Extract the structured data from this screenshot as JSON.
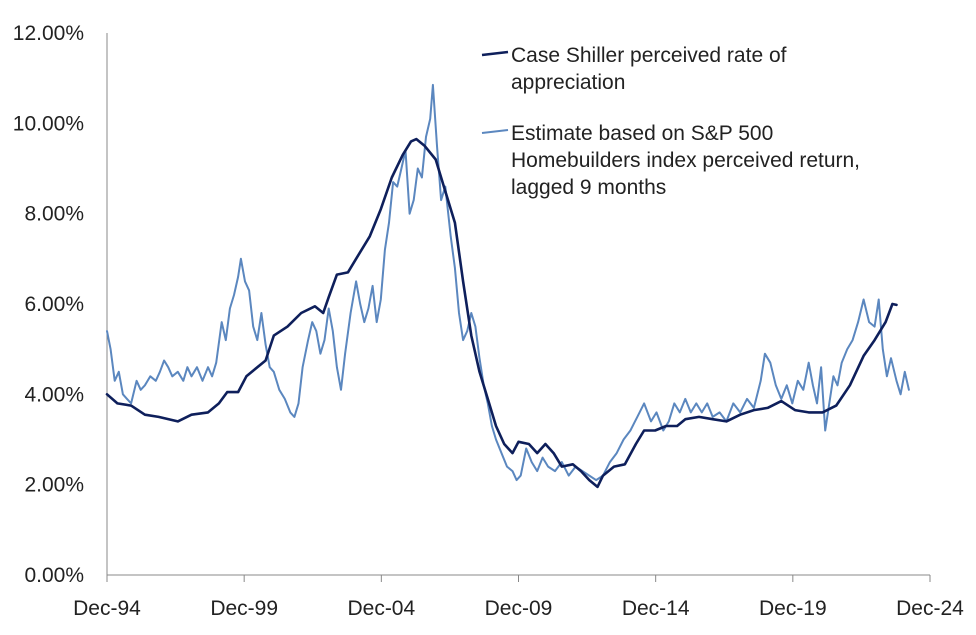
{
  "chart_data": {
    "type": "line",
    "title": "",
    "xlabel": "",
    "ylabel": "",
    "x_range": [
      1994.92,
      2024.92
    ],
    "ylim": [
      0,
      12
    ],
    "y_ticks": [
      0,
      2,
      4,
      6,
      8,
      10,
      12
    ],
    "y_tick_labels": [
      "0.00%",
      "2.00%",
      "4.00%",
      "6.00%",
      "8.00%",
      "10.00%",
      "12.00%"
    ],
    "x_ticks": [
      1994.92,
      1999.92,
      2004.92,
      2009.92,
      2014.92,
      2019.92,
      2024.92
    ],
    "x_tick_labels": [
      "Dec-94",
      "Dec-99",
      "Dec-04",
      "Dec-09",
      "Dec-14",
      "Dec-19",
      "Dec-24"
    ],
    "legend_position": "top-right",
    "series": [
      {
        "name": "Case Shiller perceived rate of appreciation",
        "legend_lines": [
          "Case Shiller perceived rate of",
          "appreciation"
        ],
        "color": "#0e1f5b",
        "points": [
          [
            1994.92,
            4.0
          ],
          [
            1995.3,
            3.8
          ],
          [
            1995.8,
            3.75
          ],
          [
            1996.3,
            3.55
          ],
          [
            1996.8,
            3.5
          ],
          [
            1997.5,
            3.4
          ],
          [
            1998.0,
            3.55
          ],
          [
            1998.6,
            3.6
          ],
          [
            1999.0,
            3.8
          ],
          [
            1999.3,
            4.05
          ],
          [
            1999.7,
            4.05
          ],
          [
            2000.0,
            4.4
          ],
          [
            2000.3,
            4.55
          ],
          [
            2000.7,
            4.75
          ],
          [
            2001.0,
            5.3
          ],
          [
            2001.5,
            5.5
          ],
          [
            2002.0,
            5.8
          ],
          [
            2002.5,
            5.95
          ],
          [
            2002.8,
            5.8
          ],
          [
            2003.0,
            6.15
          ],
          [
            2003.3,
            6.65
          ],
          [
            2003.7,
            6.7
          ],
          [
            2004.0,
            7.0
          ],
          [
            2004.5,
            7.5
          ],
          [
            2004.9,
            8.1
          ],
          [
            2005.3,
            8.8
          ],
          [
            2005.7,
            9.3
          ],
          [
            2006.0,
            9.6
          ],
          [
            2006.2,
            9.65
          ],
          [
            2006.5,
            9.5
          ],
          [
            2006.9,
            9.2
          ],
          [
            2007.2,
            8.6
          ],
          [
            2007.6,
            7.8
          ],
          [
            2007.9,
            6.5
          ],
          [
            2008.2,
            5.3
          ],
          [
            2008.5,
            4.5
          ],
          [
            2008.8,
            3.9
          ],
          [
            2009.1,
            3.3
          ],
          [
            2009.4,
            2.9
          ],
          [
            2009.7,
            2.7
          ],
          [
            2009.92,
            2.95
          ],
          [
            2010.3,
            2.9
          ],
          [
            2010.6,
            2.7
          ],
          [
            2010.9,
            2.9
          ],
          [
            2011.2,
            2.7
          ],
          [
            2011.5,
            2.4
          ],
          [
            2011.9,
            2.45
          ],
          [
            2012.2,
            2.3
          ],
          [
            2012.5,
            2.1
          ],
          [
            2012.8,
            1.95
          ],
          [
            2013.0,
            2.2
          ],
          [
            2013.4,
            2.4
          ],
          [
            2013.8,
            2.45
          ],
          [
            2014.2,
            2.9
          ],
          [
            2014.5,
            3.2
          ],
          [
            2014.9,
            3.2
          ],
          [
            2015.3,
            3.3
          ],
          [
            2015.7,
            3.3
          ],
          [
            2016.0,
            3.45
          ],
          [
            2016.5,
            3.5
          ],
          [
            2017.0,
            3.45
          ],
          [
            2017.5,
            3.4
          ],
          [
            2018.0,
            3.55
          ],
          [
            2018.5,
            3.65
          ],
          [
            2019.0,
            3.7
          ],
          [
            2019.5,
            3.85
          ],
          [
            2020.0,
            3.65
          ],
          [
            2020.5,
            3.6
          ],
          [
            2021.0,
            3.6
          ],
          [
            2021.5,
            3.75
          ],
          [
            2022.0,
            4.2
          ],
          [
            2022.5,
            4.85
          ],
          [
            2022.9,
            5.2
          ],
          [
            2023.3,
            5.6
          ],
          [
            2023.55,
            6.0
          ],
          [
            2023.7,
            5.98
          ]
        ]
      },
      {
        "name": "Estimate based on S&P 500 Homebuilders index perceived return, lagged 9 months",
        "legend_lines": [
          "Estimate based on S&P 500",
          "Homebuilders index perceived return,",
          "lagged 9 months"
        ],
        "color": "#5b87bf",
        "points": [
          [
            1994.92,
            5.4
          ],
          [
            1995.05,
            5.0
          ],
          [
            1995.2,
            4.3
          ],
          [
            1995.35,
            4.5
          ],
          [
            1995.5,
            4.0
          ],
          [
            1995.65,
            3.9
          ],
          [
            1995.8,
            3.8
          ],
          [
            1996.0,
            4.3
          ],
          [
            1996.15,
            4.1
          ],
          [
            1996.3,
            4.2
          ],
          [
            1996.5,
            4.4
          ],
          [
            1996.7,
            4.3
          ],
          [
            1996.85,
            4.5
          ],
          [
            1997.0,
            4.75
          ],
          [
            1997.15,
            4.6
          ],
          [
            1997.3,
            4.4
          ],
          [
            1997.5,
            4.5
          ],
          [
            1997.7,
            4.3
          ],
          [
            1997.85,
            4.6
          ],
          [
            1998.0,
            4.4
          ],
          [
            1998.2,
            4.6
          ],
          [
            1998.4,
            4.3
          ],
          [
            1998.6,
            4.6
          ],
          [
            1998.75,
            4.4
          ],
          [
            1998.9,
            4.7
          ],
          [
            1999.1,
            5.6
          ],
          [
            1999.25,
            5.2
          ],
          [
            1999.4,
            5.9
          ],
          [
            1999.55,
            6.2
          ],
          [
            1999.7,
            6.6
          ],
          [
            1999.8,
            7.0
          ],
          [
            1999.95,
            6.5
          ],
          [
            2000.1,
            6.3
          ],
          [
            2000.25,
            5.5
          ],
          [
            2000.4,
            5.2
          ],
          [
            2000.55,
            5.8
          ],
          [
            2000.7,
            5.1
          ],
          [
            2000.85,
            4.6
          ],
          [
            2001.0,
            4.5
          ],
          [
            2001.2,
            4.1
          ],
          [
            2001.4,
            3.9
          ],
          [
            2001.6,
            3.6
          ],
          [
            2001.75,
            3.5
          ],
          [
            2001.9,
            3.8
          ],
          [
            2002.05,
            4.6
          ],
          [
            2002.25,
            5.2
          ],
          [
            2002.4,
            5.6
          ],
          [
            2002.55,
            5.4
          ],
          [
            2002.7,
            4.9
          ],
          [
            2002.85,
            5.2
          ],
          [
            2003.0,
            5.9
          ],
          [
            2003.15,
            5.4
          ],
          [
            2003.3,
            4.6
          ],
          [
            2003.45,
            4.1
          ],
          [
            2003.6,
            4.9
          ],
          [
            2003.8,
            5.8
          ],
          [
            2004.0,
            6.5
          ],
          [
            2004.15,
            6.0
          ],
          [
            2004.3,
            5.6
          ],
          [
            2004.45,
            5.9
          ],
          [
            2004.6,
            6.4
          ],
          [
            2004.75,
            5.6
          ],
          [
            2004.9,
            6.1
          ],
          [
            2005.05,
            7.2
          ],
          [
            2005.2,
            7.8
          ],
          [
            2005.35,
            8.7
          ],
          [
            2005.5,
            8.6
          ],
          [
            2005.65,
            9.0
          ],
          [
            2005.8,
            9.4
          ],
          [
            2005.95,
            8.0
          ],
          [
            2006.1,
            8.3
          ],
          [
            2006.25,
            9.0
          ],
          [
            2006.4,
            8.8
          ],
          [
            2006.55,
            9.7
          ],
          [
            2006.7,
            10.1
          ],
          [
            2006.8,
            10.85
          ],
          [
            2006.95,
            9.5
          ],
          [
            2007.1,
            8.3
          ],
          [
            2007.25,
            8.6
          ],
          [
            2007.45,
            7.5
          ],
          [
            2007.6,
            6.8
          ],
          [
            2007.75,
            5.8
          ],
          [
            2007.9,
            5.2
          ],
          [
            2008.05,
            5.4
          ],
          [
            2008.2,
            5.8
          ],
          [
            2008.35,
            5.5
          ],
          [
            2008.5,
            4.8
          ],
          [
            2008.65,
            4.2
          ],
          [
            2008.8,
            3.8
          ],
          [
            2008.95,
            3.3
          ],
          [
            2009.1,
            3.0
          ],
          [
            2009.3,
            2.7
          ],
          [
            2009.5,
            2.4
          ],
          [
            2009.7,
            2.3
          ],
          [
            2009.85,
            2.1
          ],
          [
            2010.0,
            2.2
          ],
          [
            2010.2,
            2.8
          ],
          [
            2010.4,
            2.5
          ],
          [
            2010.6,
            2.3
          ],
          [
            2010.8,
            2.6
          ],
          [
            2011.0,
            2.4
          ],
          [
            2011.25,
            2.3
          ],
          [
            2011.5,
            2.5
          ],
          [
            2011.75,
            2.2
          ],
          [
            2012.0,
            2.4
          ],
          [
            2012.25,
            2.3
          ],
          [
            2012.5,
            2.2
          ],
          [
            2012.75,
            2.1
          ],
          [
            2013.0,
            2.2
          ],
          [
            2013.25,
            2.5
          ],
          [
            2013.5,
            2.7
          ],
          [
            2013.75,
            3.0
          ],
          [
            2014.0,
            3.2
          ],
          [
            2014.25,
            3.5
          ],
          [
            2014.5,
            3.8
          ],
          [
            2014.75,
            3.4
          ],
          [
            2014.95,
            3.6
          ],
          [
            2015.2,
            3.2
          ],
          [
            2015.4,
            3.4
          ],
          [
            2015.6,
            3.8
          ],
          [
            2015.8,
            3.6
          ],
          [
            2016.0,
            3.9
          ],
          [
            2016.2,
            3.6
          ],
          [
            2016.4,
            3.8
          ],
          [
            2016.6,
            3.6
          ],
          [
            2016.8,
            3.8
          ],
          [
            2017.0,
            3.5
          ],
          [
            2017.25,
            3.6
          ],
          [
            2017.5,
            3.4
          ],
          [
            2017.75,
            3.8
          ],
          [
            2018.0,
            3.6
          ],
          [
            2018.25,
            3.9
          ],
          [
            2018.5,
            3.7
          ],
          [
            2018.75,
            4.3
          ],
          [
            2018.9,
            4.9
          ],
          [
            2019.1,
            4.7
          ],
          [
            2019.3,
            4.2
          ],
          [
            2019.5,
            3.9
          ],
          [
            2019.7,
            4.2
          ],
          [
            2019.9,
            3.8
          ],
          [
            2020.1,
            4.3
          ],
          [
            2020.3,
            4.1
          ],
          [
            2020.5,
            4.7
          ],
          [
            2020.65,
            4.2
          ],
          [
            2020.8,
            3.8
          ],
          [
            2020.95,
            4.6
          ],
          [
            2021.1,
            3.2
          ],
          [
            2021.25,
            3.8
          ],
          [
            2021.4,
            4.4
          ],
          [
            2021.55,
            4.2
          ],
          [
            2021.7,
            4.7
          ],
          [
            2021.9,
            5.0
          ],
          [
            2022.1,
            5.2
          ],
          [
            2022.3,
            5.6
          ],
          [
            2022.5,
            6.1
          ],
          [
            2022.7,
            5.6
          ],
          [
            2022.9,
            5.5
          ],
          [
            2023.05,
            6.1
          ],
          [
            2023.2,
            5.0
          ],
          [
            2023.35,
            4.4
          ],
          [
            2023.5,
            4.8
          ],
          [
            2023.7,
            4.3
          ],
          [
            2023.85,
            4.0
          ],
          [
            2024.0,
            4.5
          ],
          [
            2024.15,
            4.1
          ]
        ]
      }
    ]
  }
}
